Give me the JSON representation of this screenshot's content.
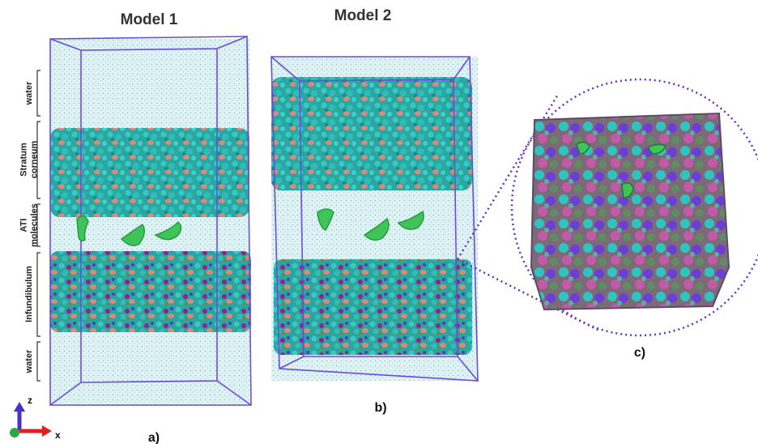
{
  "titles": {
    "model_1": "Model 1",
    "model_2": "Model 2"
  },
  "layer_labels": [
    {
      "lines": [
        "water"
      ]
    },
    {
      "lines": [
        "Stratum",
        "corneum"
      ]
    },
    {
      "lines": [
        "ATI",
        "molecules"
      ]
    },
    {
      "lines": [
        "Infundibulum"
      ]
    },
    {
      "lines": [
        "water"
      ]
    }
  ],
  "panel_labels": {
    "a": "a)",
    "b": "b)",
    "c": "c)"
  },
  "axes": {
    "z": "z",
    "x": "x"
  }
}
